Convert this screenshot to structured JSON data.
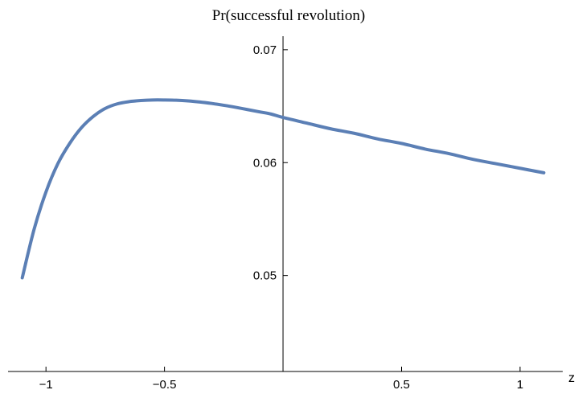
{
  "chart_data": {
    "type": "line",
    "title": "Pr(successful revolution)",
    "xlabel": "z",
    "ylabel": "",
    "xlim": [
      -1.16,
      1.18
    ],
    "ylim": [
      0.0415,
      0.0712
    ],
    "x_ticks": [
      -1,
      -0.5,
      0.5,
      1
    ],
    "x_tick_labels": [
      "−1",
      "−0.5",
      "0.5",
      "1"
    ],
    "y_ticks": [
      0.05,
      0.06,
      0.07
    ],
    "y_tick_labels": [
      "0.05",
      "0.06",
      "0.07"
    ],
    "grid": false,
    "series": [
      {
        "color": "#5b7fb5",
        "x": [
          -1.1,
          -1.05,
          -1.0,
          -0.95,
          -0.9,
          -0.85,
          -0.8,
          -0.75,
          -0.7,
          -0.65,
          -0.6,
          -0.55,
          -0.5,
          -0.45,
          -0.4,
          -0.35,
          -0.3,
          -0.25,
          -0.2,
          -0.15,
          -0.1,
          -0.05,
          0.0,
          0.1,
          0.2,
          0.3,
          0.4,
          0.5,
          0.6,
          0.7,
          0.8,
          0.9,
          1.0,
          1.1
        ],
        "y": [
          0.0498,
          0.0541,
          0.0574,
          0.0599,
          0.0617,
          0.0631,
          0.0641,
          0.0648,
          0.0652,
          0.0654,
          0.0655,
          0.06555,
          0.06555,
          0.06553,
          0.06547,
          0.06537,
          0.06524,
          0.06508,
          0.0649,
          0.0647,
          0.0645,
          0.0643,
          0.064,
          0.0635,
          0.063,
          0.0626,
          0.0621,
          0.0617,
          0.0612,
          0.0608,
          0.0603,
          0.0599,
          0.0595,
          0.0591
        ]
      }
    ]
  }
}
